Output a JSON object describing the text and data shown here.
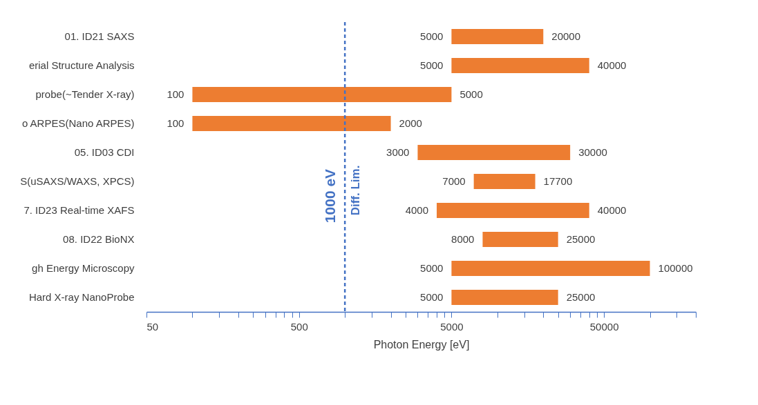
{
  "chart_data": {
    "type": "bar",
    "orientation": "horizontal",
    "xlabel": "Photon Energy [eV]",
    "categories": [
      "01. ID21 SAXS",
      "erial Structure Analysis",
      "probe(~Tender X-ray)",
      "o ARPES(Nano ARPES)",
      "05. ID03 CDI",
      "S(uSAXS/WAXS, XPCS)",
      "7. ID23 Real-time XAFS",
      "08. ID22 BioNX",
      "gh Energy Microscopy",
      "Hard X-ray NanoProbe"
    ],
    "base": [
      5000,
      5000,
      100,
      100,
      3000,
      7000,
      4000,
      8000,
      5000,
      5000
    ],
    "values": [
      15000,
      35000,
      4900,
      1900,
      27000,
      10700,
      36000,
      17000,
      95000,
      20000
    ],
    "value_labels": [
      "20000",
      "40000",
      "5000",
      "2000",
      "30000",
      "17700",
      "40000",
      "25000",
      "100000",
      "25000"
    ],
    "color": "#ed7d31",
    "log": "x",
    "grid": false,
    "xlim": [
      50,
      200000
    ],
    "xticks": [
      50,
      {
        "value": 100,
        "label": null
      },
      {
        "value": 150,
        "label": null
      },
      {
        "value": 200,
        "label": null
      },
      {
        "value": 250,
        "label": null
      },
      {
        "value": 300,
        "label": null
      },
      {
        "value": 350,
        "label": null
      },
      {
        "value": 400,
        "label": null
      },
      {
        "value": 450,
        "label": null
      },
      500,
      {
        "value": 1000,
        "label": null
      },
      {
        "value": 1500,
        "label": null
      },
      {
        "value": 2000,
        "label": null
      },
      {
        "value": 2500,
        "label": null
      },
      {
        "value": 3000,
        "label": null
      },
      {
        "value": 3500,
        "label": null
      },
      {
        "value": 4000,
        "label": null
      },
      {
        "value": 4500,
        "label": null
      },
      5000,
      {
        "value": 10000,
        "label": null
      },
      {
        "value": 15000,
        "label": null
      },
      {
        "value": 20000,
        "label": null
      },
      {
        "value": 25000,
        "label": null
      },
      {
        "value": 30000,
        "label": null
      },
      {
        "value": 35000,
        "label": null
      },
      {
        "value": 40000,
        "label": null
      },
      {
        "value": 45000,
        "label": null
      },
      50000,
      {
        "value": 100000,
        "label": null
      },
      {
        "value": 150000,
        "label": null
      },
      {
        "value": 200000,
        "label": null
      }
    ],
    "ref_lines": [
      {
        "axis": "x",
        "value": 1000,
        "label": "1000 eV",
        "color": "#4472c4",
        "line_style": "dashed"
      }
    ],
    "annotations": [
      {
        "text": "5000",
        "x": 5000,
        "y": "01. ID21 SAXS"
      },
      {
        "text": "5000",
        "x": 5000,
        "y": "erial Structure Analysis"
      },
      {
        "text": "100",
        "x": 100,
        "y": "probe(~Tender X-ray)"
      },
      {
        "text": "100",
        "x": 100,
        "y": "o ARPES(Nano ARPES)"
      },
      {
        "text": "3000",
        "x": 3000,
        "y": "05. ID03 CDI"
      },
      {
        "text": "7000",
        "x": 7000,
        "y": "S(uSAXS/WAXS, XPCS)"
      },
      {
        "text": "4000",
        "x": 4000,
        "y": "7. ID23 Real-time XAFS"
      },
      {
        "text": "8000",
        "x": 8000,
        "y": "08. ID22 BioNX"
      },
      {
        "text": "5000",
        "x": 5000,
        "y": "gh Energy Microscopy"
      },
      {
        "text": "5000",
        "x": 5000,
        "y": "Hard X-ray NanoProbe"
      },
      "Diff. Lim."
    ]
  }
}
